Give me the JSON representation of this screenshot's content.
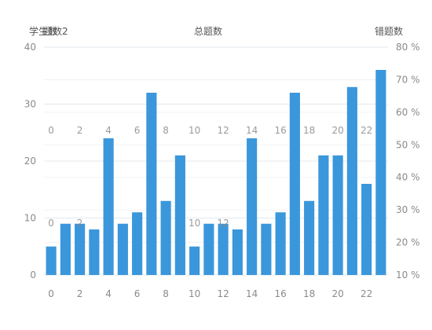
{
  "chart_data": {
    "type": "bar",
    "axis_titles": {
      "left": "学生数",
      "left_overlap": "题数2",
      "top": "总题数",
      "right": "错题数"
    },
    "x": [
      0,
      1,
      2,
      3,
      4,
      5,
      6,
      7,
      8,
      9,
      10,
      11,
      12,
      13,
      14,
      15,
      16,
      17,
      18,
      19,
      20,
      21,
      22,
      23
    ],
    "x_tick_labels": [
      "0",
      "2",
      "4",
      "6",
      "8",
      "10",
      "12",
      "14",
      "16",
      "18",
      "20",
      "22"
    ],
    "values": [
      5,
      9,
      9,
      8,
      24,
      9,
      11,
      32,
      13,
      21,
      5,
      9,
      9,
      8,
      24,
      9,
      11,
      32,
      13,
      21,
      21,
      33,
      16,
      36
    ],
    "ylim_left": [
      0,
      40
    ],
    "left_ticks": [
      "0",
      "10",
      "20",
      "30",
      "40"
    ],
    "right_ticks": [
      "10 %",
      "20 %",
      "30 %",
      "40 %",
      "50 %",
      "60 %",
      "70 %",
      "80 %"
    ],
    "ghost_row_upper": [
      "0",
      "2",
      "4",
      "6",
      "8",
      "10",
      "12",
      "14",
      "16",
      "18",
      "20",
      "22"
    ],
    "ghost_row_lower": [
      "0",
      "2",
      "10",
      "12"
    ],
    "grid": true,
    "bar_color": "#3b97db",
    "grid_color": "#e3e8ec",
    "text_color": "#8a8a8a",
    "title_color": "#555555"
  }
}
